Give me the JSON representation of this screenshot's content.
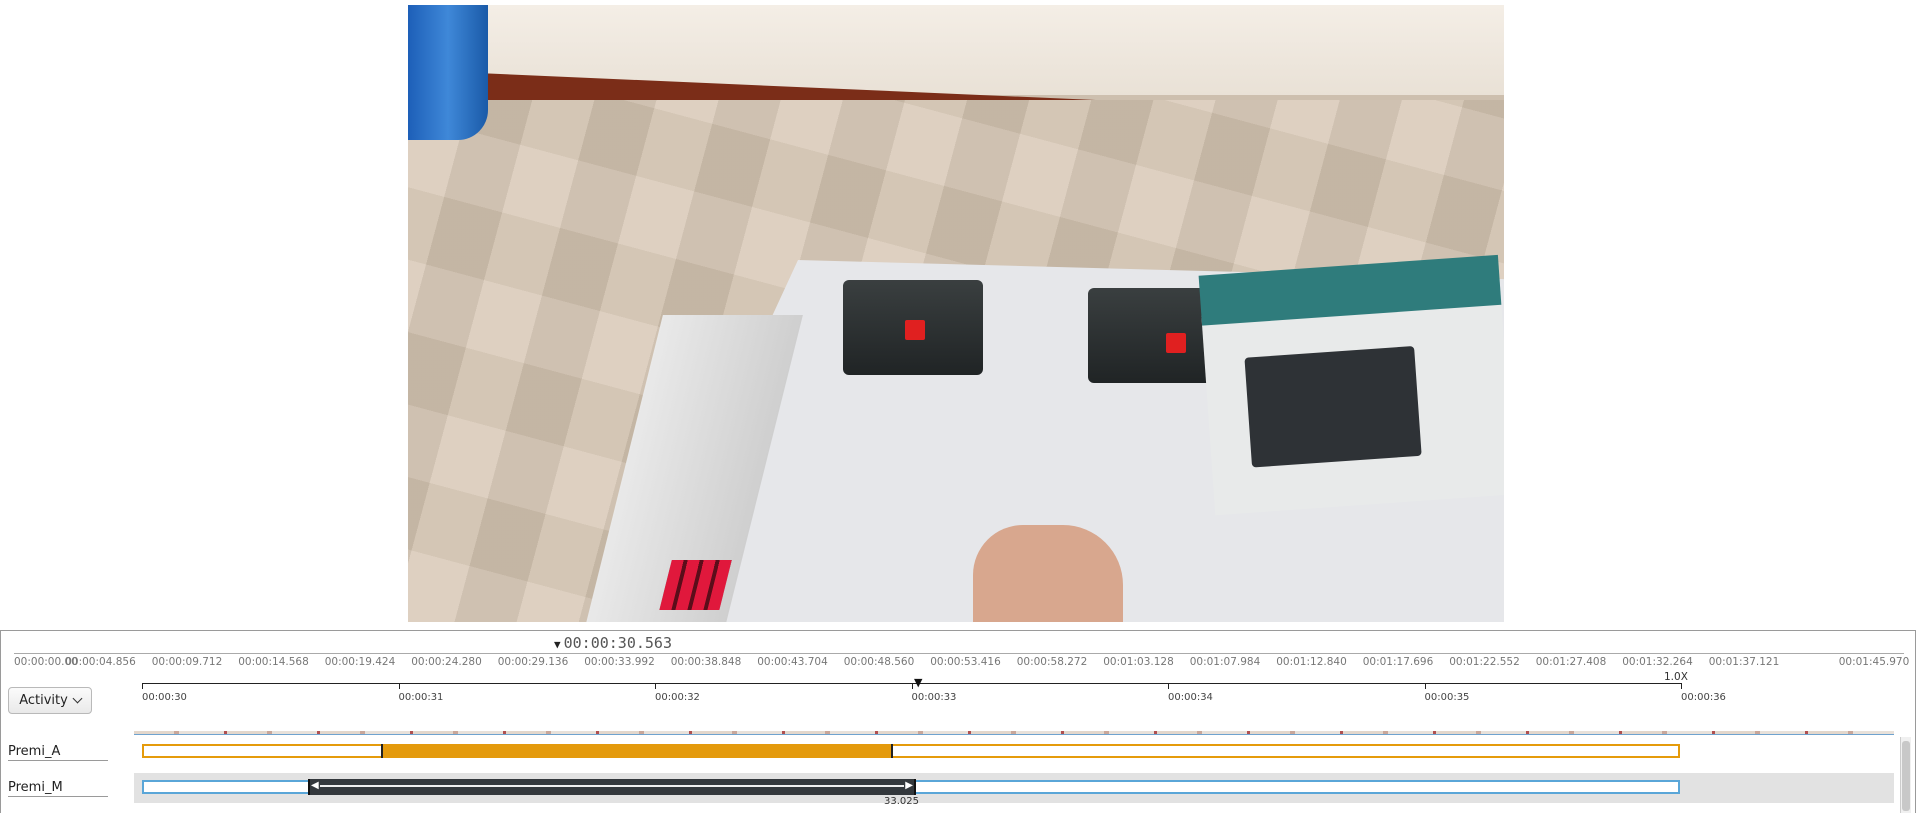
{
  "cursor_time": "00:00:30.563",
  "overview_ticks": [
    "00:00:00.00",
    "00:00:04.856",
    "00:00:09.712",
    "00:00:14.568",
    "00:00:19.424",
    "00:00:24.280",
    "00:00:29.136",
    "00:00:33.992",
    "00:00:38.848",
    "00:00:43.704",
    "00:00:48.560",
    "00:00:53.416",
    "00:00:58.272",
    "00:01:03.128",
    "00:01:07.984",
    "00:01:12.840",
    "00:01:17.696",
    "00:01:22.552",
    "00:01:27.408",
    "00:01:32.264",
    "00:01:37.121",
    "00:01:45.970"
  ],
  "zoom_level": "1.0X",
  "detail_ticks": [
    "00:00:30",
    "00:00:31",
    "00:00:32",
    "00:00:33",
    "00:00:34",
    "00:00:35",
    "00:00:36"
  ],
  "activity_dropdown": {
    "selected": "Activity"
  },
  "tracks": [
    {
      "label": "Premi_A",
      "color": "#e59b0b"
    },
    {
      "label": "Premi_M",
      "color": "#5aa6d8",
      "segment_end_time": "33.025"
    }
  ]
}
